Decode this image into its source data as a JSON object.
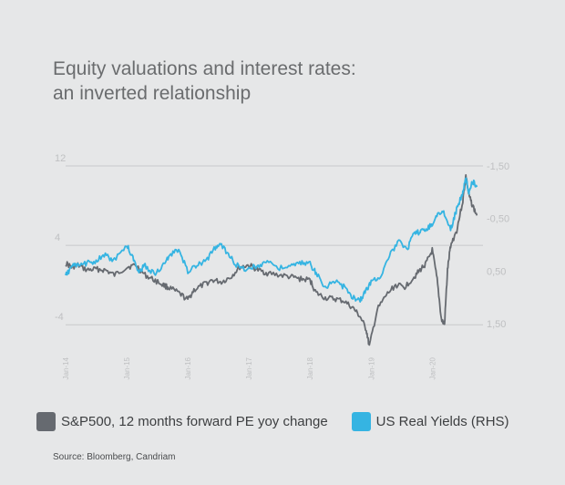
{
  "title_line1": "Equity valuations and interest rates:",
  "title_line2": "an inverted relationship",
  "source": "Source: Bloomberg, Candriam",
  "colors": {
    "background": "#e6e7e8",
    "sp500": "#666a70",
    "real_yields": "#35b4e2",
    "grid": "#c8c9cb",
    "tick": "#bfc0c2"
  },
  "chart_data": {
    "type": "line",
    "title": "Equity valuations and interest rates: an inverted relationship",
    "xlabel": "",
    "ylabel": "",
    "xlim": [
      2014.0,
      2020.83
    ],
    "ylim_left": [
      -6,
      12
    ],
    "ylim_right": [
      1.9,
      -1.5
    ],
    "yticks_left": [
      12,
      4,
      -4
    ],
    "yticks_left_labels": [
      "12",
      "4",
      "-4"
    ],
    "yticks_right": [
      -1.5,
      -0.5,
      0.5,
      1.5
    ],
    "yticks_right_labels": [
      "-1,50",
      "-0,50",
      "0,50",
      "1,50"
    ],
    "xticks": [
      2014.0,
      2015.0,
      2016.0,
      2017.0,
      2018.0,
      2019.0,
      2020.0
    ],
    "xtick_labels": [
      "Jan-14",
      "Jan-15",
      "Jan-16",
      "Jan-17",
      "Jan-18",
      "Jan-19",
      "Jan-20"
    ],
    "grid": true,
    "legend_position": "bottom",
    "series": [
      {
        "name": "S&P500, 12 months forward PE yoy change",
        "axis": "left",
        "x": [
          2014.0,
          2014.1,
          2014.2,
          2014.35,
          2014.5,
          2014.65,
          2014.8,
          2015.0,
          2015.15,
          2015.3,
          2015.45,
          2015.6,
          2015.7,
          2015.85,
          2016.0,
          2016.1,
          2016.25,
          2016.4,
          2016.55,
          2016.7,
          2016.85,
          2017.0,
          2017.15,
          2017.3,
          2017.5,
          2017.7,
          2017.85,
          2018.0,
          2018.1,
          2018.25,
          2018.4,
          2018.55,
          2018.7,
          2018.82,
          2018.92,
          2018.97,
          2019.1,
          2019.25,
          2019.4,
          2019.55,
          2019.7,
          2019.8,
          2019.9,
          2020.0,
          2020.08,
          2020.15,
          2020.2,
          2020.25,
          2020.3,
          2020.4,
          2020.5,
          2020.55,
          2020.6,
          2020.66,
          2020.73
        ],
        "y": [
          2.2,
          1.8,
          2.0,
          1.5,
          1.6,
          1.5,
          1.0,
          1.8,
          2.0,
          1.0,
          0.5,
          0.0,
          -0.3,
          -0.8,
          -1.5,
          -0.5,
          0.0,
          0.5,
          0.3,
          0.8,
          1.8,
          2.0,
          1.5,
          1.2,
          1.0,
          0.8,
          0.6,
          0.5,
          -0.8,
          -1.3,
          -1.4,
          -1.6,
          -2.3,
          -3.2,
          -4.5,
          -6.2,
          -2.5,
          -1.0,
          0.0,
          -0.2,
          0.8,
          1.5,
          2.2,
          3.5,
          0.5,
          -3.5,
          -4.0,
          1.5,
          4.0,
          5.5,
          8.5,
          11.0,
          9.0,
          8.0,
          7.0
        ]
      },
      {
        "name": "US Real Yields (RHS)",
        "axis": "right",
        "x": [
          2014.0,
          2014.1,
          2014.2,
          2014.35,
          2014.5,
          2014.65,
          2014.8,
          2015.0,
          2015.1,
          2015.2,
          2015.3,
          2015.45,
          2015.6,
          2015.7,
          2015.85,
          2016.0,
          2016.15,
          2016.3,
          2016.45,
          2016.55,
          2016.7,
          2016.85,
          2017.0,
          2017.15,
          2017.3,
          2017.5,
          2017.7,
          2017.85,
          2018.0,
          2018.1,
          2018.25,
          2018.4,
          2018.55,
          2018.7,
          2018.82,
          2018.9,
          2019.0,
          2019.15,
          2019.3,
          2019.45,
          2019.6,
          2019.7,
          2019.8,
          2019.9,
          2020.0,
          2020.1,
          2020.2,
          2020.3,
          2020.38,
          2020.45,
          2020.5,
          2020.55,
          2020.6,
          2020.66,
          2020.73
        ],
        "y": [
          0.6,
          0.4,
          0.4,
          0.35,
          0.3,
          0.2,
          0.3,
          0.0,
          0.25,
          0.5,
          0.4,
          0.55,
          0.4,
          0.2,
          0.1,
          0.5,
          0.4,
          0.3,
          0.05,
          0.0,
          0.25,
          0.45,
          0.45,
          0.4,
          0.3,
          0.45,
          0.4,
          0.35,
          0.35,
          0.55,
          0.8,
          0.7,
          0.8,
          1.0,
          1.05,
          0.9,
          0.7,
          0.6,
          0.2,
          -0.05,
          0.05,
          -0.2,
          -0.25,
          -0.3,
          -0.4,
          -0.6,
          -0.6,
          -0.3,
          -0.6,
          -0.85,
          -1.0,
          -1.25,
          -1.0,
          -1.2,
          -1.1
        ]
      }
    ]
  },
  "legend": {
    "item1": "S&P500, 12 months forward PE yoy change",
    "item2": "US Real Yields (RHS)"
  }
}
